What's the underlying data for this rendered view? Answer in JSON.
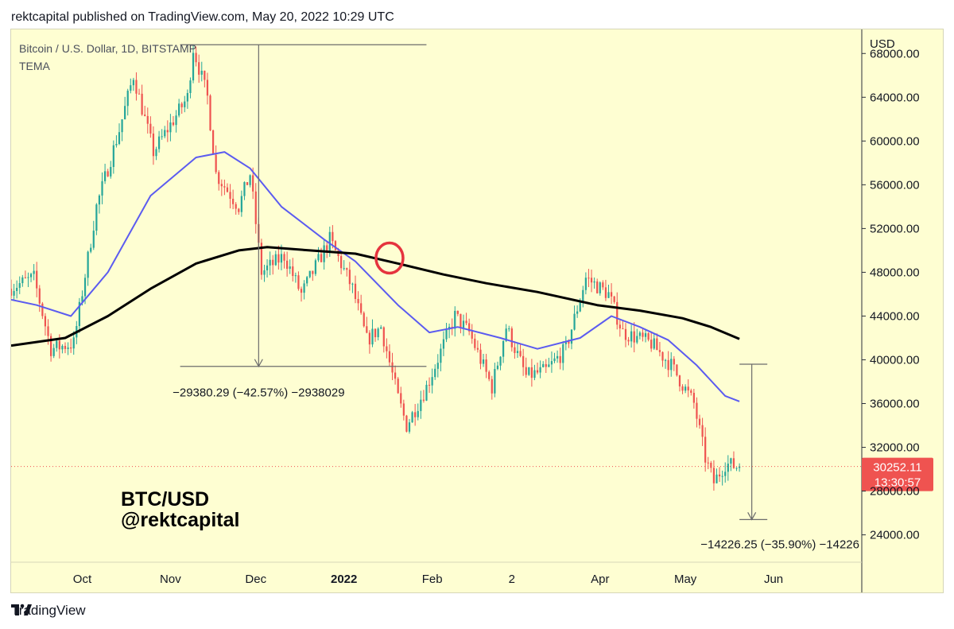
{
  "header": {
    "published_line": "rektcapital published on TradingView.com, May 20, 2022 10:29 UTC"
  },
  "chart_header": {
    "symbol_line": "Bitcoin / U.S. Dollar, 1D, BITSTAMP",
    "indicator": "TEMA"
  },
  "watermark": {
    "pair": "BTC/USD",
    "author": "@rektcapital"
  },
  "footer": {
    "brand": "TradingView"
  },
  "colors": {
    "bg": "#fefed2",
    "up": "#26a69a",
    "down": "#ef5350",
    "ema_fast": "#5b5bf0",
    "ema_slow": "#000000",
    "circle": "#e5333e",
    "price_tag": "#ef5350"
  },
  "chart_data": {
    "type": "candlestick",
    "symbol": "BTC/USD",
    "timeframe": "1D",
    "exchange": "BITSTAMP",
    "y_axis": {
      "unit_label": "USD",
      "range": [
        21500,
        70200
      ],
      "ticks": [
        "68000.00",
        "64000.00",
        "60000.00",
        "56000.00",
        "52000.00",
        "48000.00",
        "44000.00",
        "40000.00",
        "36000.00",
        "32000.00",
        "28000.00",
        "24000.00"
      ]
    },
    "x_axis": {
      "range": [
        "2021-09-06",
        "2022-07-02"
      ],
      "ticks": [
        {
          "date": "2021-10-01",
          "label": "Oct",
          "bold": false
        },
        {
          "date": "2021-11-01",
          "label": "Nov",
          "bold": false
        },
        {
          "date": "2021-12-01",
          "label": "Dec",
          "bold": false
        },
        {
          "date": "2022-01-01",
          "label": "2022",
          "bold": true
        },
        {
          "date": "2022-02-01",
          "label": "Feb",
          "bold": false
        },
        {
          "date": "2022-03-01",
          "label": "2",
          "bold": false
        },
        {
          "date": "2022-04-01",
          "label": "Apr",
          "bold": false
        },
        {
          "date": "2022-05-01",
          "label": "May",
          "bold": false
        },
        {
          "date": "2022-06-01",
          "label": "Jun",
          "bold": false
        }
      ]
    },
    "price_path": [
      [
        "2021-09-06",
        46500
      ],
      [
        "2021-09-15",
        47500
      ],
      [
        "2021-09-21",
        41000
      ],
      [
        "2021-09-29",
        41500
      ],
      [
        "2021-10-07",
        54000
      ],
      [
        "2021-10-15",
        61000
      ],
      [
        "2021-10-20",
        66000
      ],
      [
        "2021-10-27",
        59000
      ],
      [
        "2021-11-08",
        64000
      ],
      [
        "2021-11-10",
        68500
      ],
      [
        "2021-11-15",
        64000
      ],
      [
        "2021-11-18",
        57000
      ],
      [
        "2021-11-26",
        54000
      ],
      [
        "2021-11-30",
        57000
      ],
      [
        "2021-12-04",
        48000
      ],
      [
        "2021-12-12",
        49500
      ],
      [
        "2021-12-18",
        46000
      ],
      [
        "2021-12-28",
        51000
      ],
      [
        "2022-01-05",
        46500
      ],
      [
        "2022-01-10",
        41800
      ],
      [
        "2022-01-15",
        43000
      ],
      [
        "2022-01-21",
        36500
      ],
      [
        "2022-01-24",
        34000
      ],
      [
        "2022-01-31",
        37500
      ],
      [
        "2022-02-10",
        44000
      ],
      [
        "2022-02-15",
        42500
      ],
      [
        "2022-02-23",
        37500
      ],
      [
        "2022-02-28",
        43000
      ],
      [
        "2022-03-07",
        38500
      ],
      [
        "2022-03-14",
        39000
      ],
      [
        "2022-03-21",
        41000
      ],
      [
        "2022-03-28",
        47500
      ],
      [
        "2022-04-05",
        46000
      ],
      [
        "2022-04-10",
        42500
      ],
      [
        "2022-04-20",
        41500
      ],
      [
        "2022-04-27",
        39500
      ],
      [
        "2022-05-05",
        36000
      ],
      [
        "2022-05-09",
        31000
      ],
      [
        "2022-05-12",
        28800
      ],
      [
        "2022-05-16",
        30500
      ],
      [
        "2022-05-20",
        30252
      ]
    ],
    "series": [
      {
        "values": [
          [
            "2021-09-06",
            45500
          ],
          [
            "2021-09-15",
            45000
          ],
          [
            "2021-09-27",
            44000
          ],
          [
            "2021-10-10",
            48000
          ],
          [
            "2021-10-25",
            55000
          ],
          [
            "2021-11-10",
            58500
          ],
          [
            "2021-11-20",
            59000
          ],
          [
            "2021-11-29",
            57500
          ],
          [
            "2021-12-10",
            54000
          ],
          [
            "2021-12-25",
            51000
          ],
          [
            "2022-01-05",
            49000
          ],
          [
            "2022-01-20",
            45000
          ],
          [
            "2022-01-31",
            42500
          ],
          [
            "2022-02-10",
            43000
          ],
          [
            "2022-02-25",
            42000
          ],
          [
            "2022-03-10",
            41000
          ],
          [
            "2022-03-25",
            42000
          ],
          [
            "2022-04-05",
            44000
          ],
          [
            "2022-04-15",
            43000
          ],
          [
            "2022-04-25",
            41800
          ],
          [
            "2022-05-05",
            39500
          ],
          [
            "2022-05-15",
            36700
          ],
          [
            "2022-05-20",
            36200
          ]
        ]
      },
      {
        "values": [
          [
            "2021-09-06",
            41300
          ],
          [
            "2021-09-25",
            42000
          ],
          [
            "2021-10-10",
            44000
          ],
          [
            "2021-10-25",
            46500
          ],
          [
            "2021-11-10",
            48800
          ],
          [
            "2021-11-25",
            50000
          ],
          [
            "2021-12-05",
            50300
          ],
          [
            "2021-12-20",
            50000
          ],
          [
            "2022-01-05",
            49700
          ],
          [
            "2022-01-20",
            48800
          ],
          [
            "2022-02-05",
            47800
          ],
          [
            "2022-02-20",
            47000
          ],
          [
            "2022-03-10",
            46200
          ],
          [
            "2022-03-31",
            45000
          ],
          [
            "2022-04-15",
            44500
          ],
          [
            "2022-04-30",
            43800
          ],
          [
            "2022-05-10",
            43000
          ],
          [
            "2022-05-20",
            41900
          ]
        ]
      }
    ],
    "annotations": [
      {
        "type": "price-range",
        "from": 68800,
        "to": 39400,
        "start": "2021-11-10",
        "end": "2022-01-23",
        "label": "−29380.29 (−42.57%) −2938029"
      },
      {
        "type": "price-range",
        "from": 39600,
        "to": 25400,
        "start": "2022-05-20",
        "end": "2022-05-27",
        "label": "−14226.25 (−35.90%) −14226"
      },
      {
        "type": "circle",
        "date": "2022-01-17",
        "price": 49300
      }
    ],
    "last_price": {
      "value": "30252.11",
      "countdown": "13:30:57"
    }
  }
}
